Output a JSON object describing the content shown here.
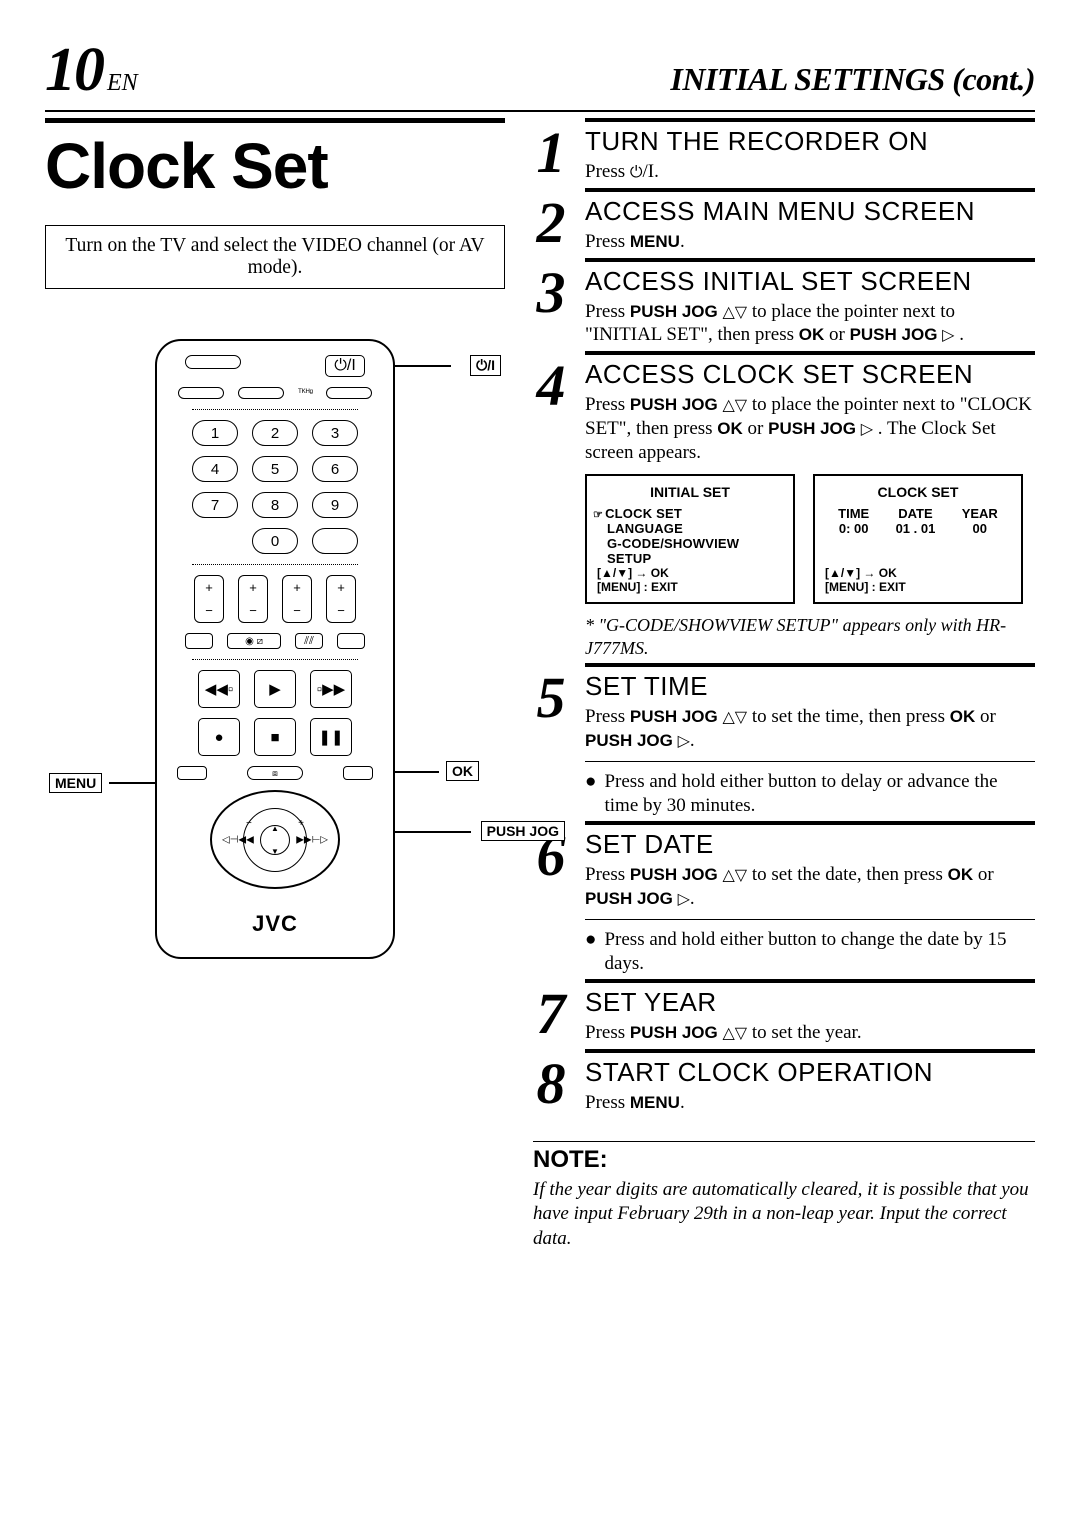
{
  "header": {
    "page_number": "10",
    "page_lang": "EN",
    "section_title": "INITIAL SETTINGS (cont.)"
  },
  "left": {
    "title": "Clock Set",
    "tv_note": "Turn on the TV and select the VIDEO channel (or AV mode).",
    "remote": {
      "brand": "JVC",
      "numpad": [
        "1",
        "2",
        "3",
        "4",
        "5",
        "6",
        "7",
        "8",
        "9",
        "0"
      ],
      "callout_power": "⏻/I",
      "callout_menu": "MENU",
      "callout_ok": "OK",
      "callout_pushjog": "PUSH JOG"
    }
  },
  "steps": [
    {
      "n": "1",
      "title": "TURN THE RECORDER ON",
      "body_html": "Press <span class='sym'>⏻</span>/I."
    },
    {
      "n": "2",
      "title": "ACCESS MAIN MENU SCREEN",
      "body_html": "Press <b>MENU</b>."
    },
    {
      "n": "3",
      "title": "ACCESS INITIAL SET SCREEN",
      "body_html": "Press <b>PUSH JOG</b> <span class='sym'>△▽</span> to place the pointer next to \"INITIAL SET\", then press <b>OK</b> or <b>PUSH JOG</b> <span class='sym'>▷</span> ."
    },
    {
      "n": "4",
      "title": "ACCESS CLOCK SET SCREEN",
      "body_html": "Press <b>PUSH JOG</b> <span class='sym'>△▽</span> to place the pointer next  to \"CLOCK SET\", then press <b>OK</b> or <b>PUSH JOG</b> <span class='sym'>▷</span> . The Clock Set screen appears.",
      "osd": {
        "left": {
          "title": "INITIAL SET",
          "items": [
            "CLOCK SET",
            "LANGUAGE",
            "G-CODE/SHOWVIEW SETUP"
          ],
          "foot": "[▲/▼] → OK\n[MENU] : EXIT"
        },
        "right": {
          "title": "CLOCK SET",
          "cols": [
            {
              "h": "TIME",
              "v": "0: 00"
            },
            {
              "h": "DATE",
              "v": "01 . 01"
            },
            {
              "h": "YEAR",
              "v": "00"
            }
          ],
          "foot": "[▲/▼] → OK\n[MENU] : EXIT"
        },
        "note": "* \"G-CODE/SHOWVIEW SETUP\" appears only with HR-J777MS."
      }
    },
    {
      "n": "5",
      "title": "SET TIME",
      "body_html": "Press <b>PUSH JOG</b> <span class='sym'>△▽</span> to set the time, then press <b>OK</b> or <b>PUSH JOG</b> <span class='sym'>▷</span>.",
      "bullet": "Press and hold either button to delay or advance the time by 30 minutes."
    },
    {
      "n": "6",
      "title": "SET DATE",
      "body_html": "Press <b>PUSH JOG</b> <span class='sym'>△▽</span> to set the date, then press <b>OK</b> or <b>PUSH JOG</b> <span class='sym'>▷</span>.",
      "bullet": "Press and hold either button to change the date by 15 days."
    },
    {
      "n": "7",
      "title": "SET YEAR",
      "body_html": "Press <b>PUSH JOG</b> <span class='sym'>△▽</span> to set the year."
    },
    {
      "n": "8",
      "title": "START CLOCK OPERATION",
      "body_html": "Press <b>MENU</b>."
    }
  ],
  "note": {
    "head": "NOTE:",
    "body": "If the year digits are automatically cleared, it is possible that you have input February 29th in a non-leap year. Input the correct data."
  },
  "colors": {
    "text": "#000000",
    "background": "#ffffff",
    "rule": "#000000"
  }
}
